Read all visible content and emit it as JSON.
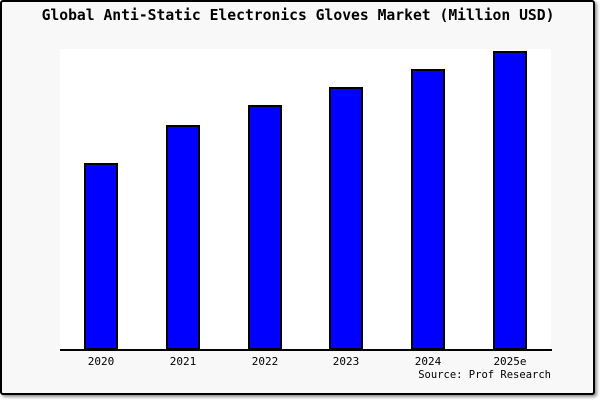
{
  "header": {
    "title": "Global Anti-Static Electronics Gloves Market (Million USD)"
  },
  "chart_data": {
    "type": "bar",
    "title": "Global Anti-Static Electronics Gloves Market (Million USD)",
    "categories": [
      "2020",
      "2021",
      "2022",
      "2023",
      "2024",
      "2025e"
    ],
    "values": [
      62.2,
      74.7,
      81.4,
      87.4,
      93.3,
      99.4
    ],
    "xlabel": "",
    "ylabel": "",
    "ylim": [
      0,
      100
    ],
    "y_axis_labels_shown": false,
    "grid": false,
    "legend": false,
    "bar_color": "#0000ff",
    "bar_border_color": "#000000"
  },
  "footer": {
    "source": "Source: Prof Research"
  },
  "colors": {
    "canvas_background": "#f8f8f8",
    "plot_background": "#ffffff",
    "bar": "#0000ff",
    "text": "#000000",
    "frame_border": "#000000"
  }
}
